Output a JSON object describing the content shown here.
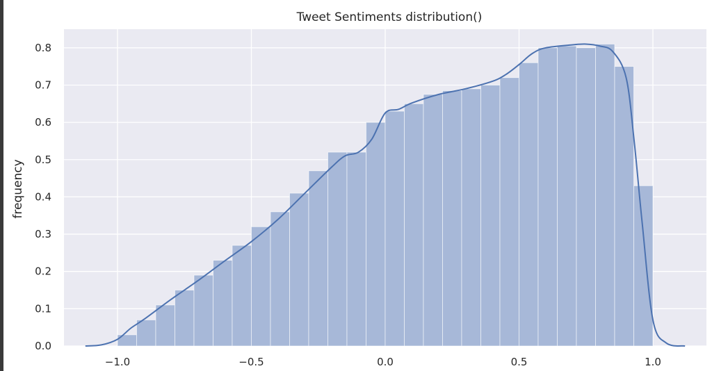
{
  "chart_data": {
    "type": "bar",
    "title": "Tweet Sentiments distribution()",
    "xlabel": "",
    "ylabel": "frequency",
    "xlim": [
      -1.2,
      1.2
    ],
    "ylim": [
      0.0,
      0.85
    ],
    "grid": true,
    "x_ticks": [
      -1.0,
      -0.5,
      0.0,
      0.5,
      1.0
    ],
    "x_tick_labels": [
      "−1.0",
      "−0.5",
      "0.0",
      "0.5",
      "1.0"
    ],
    "y_ticks": [
      0.0,
      0.1,
      0.2,
      0.3,
      0.4,
      0.5,
      0.6,
      0.7,
      0.8
    ],
    "y_tick_labels": [
      "0.0",
      "0.1",
      "0.2",
      "0.3",
      "0.4",
      "0.5",
      "0.6",
      "0.7",
      "0.8"
    ],
    "colors": {
      "background": "#eaeaf2",
      "grid": "#ffffff",
      "bar": "#a7b8d8",
      "line": "#4c72b0"
    },
    "histogram": {
      "bin_edges": [
        -1.0,
        -0.928571,
        -0.857143,
        -0.785714,
        -0.714286,
        -0.642857,
        -0.571429,
        -0.5,
        -0.428571,
        -0.357143,
        -0.285714,
        -0.214286,
        -0.142857,
        -0.071429,
        0.0,
        0.071429,
        0.142857,
        0.214286,
        0.285714,
        0.357143,
        0.428571,
        0.5,
        0.571429,
        0.642857,
        0.714286,
        0.785714,
        0.857143,
        0.928571,
        1.0
      ],
      "values": [
        0.03,
        0.07,
        0.11,
        0.15,
        0.19,
        0.23,
        0.27,
        0.32,
        0.36,
        0.41,
        0.47,
        0.52,
        0.52,
        0.6,
        0.63,
        0.65,
        0.675,
        0.685,
        0.69,
        0.7,
        0.72,
        0.76,
        0.8,
        0.805,
        0.8,
        0.81,
        0.75,
        0.43
      ]
    },
    "kde": {
      "x": [
        -1.12,
        -1.06,
        -1.0,
        -0.95,
        -0.9,
        -0.8,
        -0.7,
        -0.6,
        -0.5,
        -0.4,
        -0.3,
        -0.2,
        -0.15,
        -0.1,
        -0.05,
        0.0,
        0.05,
        0.1,
        0.2,
        0.3,
        0.4,
        0.45,
        0.5,
        0.55,
        0.6,
        0.7,
        0.75,
        0.8,
        0.85,
        0.9,
        0.93,
        0.96,
        1.0,
        1.05,
        1.12
      ],
      "y": [
        0.0,
        0.003,
        0.018,
        0.048,
        0.072,
        0.125,
        0.175,
        0.228,
        0.28,
        0.34,
        0.41,
        0.48,
        0.51,
        0.52,
        0.555,
        0.625,
        0.635,
        0.652,
        0.675,
        0.69,
        0.71,
        0.728,
        0.755,
        0.785,
        0.8,
        0.808,
        0.81,
        0.805,
        0.79,
        0.72,
        0.55,
        0.33,
        0.07,
        0.008,
        0.0
      ]
    }
  }
}
